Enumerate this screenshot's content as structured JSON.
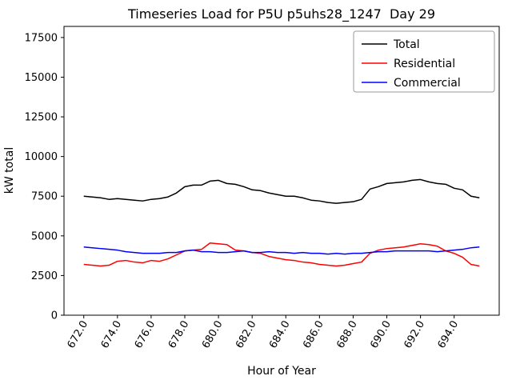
{
  "chart_data": {
    "type": "line",
    "title": "Timeseries Load for P5U p5uhs28_1247  Day 29",
    "xlabel": "Hour of Year",
    "ylabel": "kW total",
    "xlim": [
      670.825,
      696.675
    ],
    "ylim": [
      0,
      18200
    ],
    "grid": false,
    "legend_position": "upper right",
    "x_ticks": [
      672,
      674,
      676,
      678,
      680,
      682,
      684,
      686,
      688,
      690,
      692,
      694
    ],
    "x_tick_labels": [
      "672.0",
      "674.0",
      "676.0",
      "678.0",
      "680.0",
      "682.0",
      "684.0",
      "686.0",
      "688.0",
      "690.0",
      "692.0",
      "694.0"
    ],
    "y_ticks": [
      0,
      2500,
      5000,
      7500,
      10000,
      12500,
      15000,
      17500
    ],
    "x": [
      672.0,
      672.5,
      673.0,
      673.5,
      674.0,
      674.5,
      675.0,
      675.5,
      676.0,
      676.5,
      677.0,
      677.5,
      678.0,
      678.5,
      679.0,
      679.5,
      680.0,
      680.5,
      681.0,
      681.5,
      682.0,
      682.5,
      683.0,
      683.5,
      684.0,
      684.5,
      685.0,
      685.5,
      686.0,
      686.5,
      687.0,
      687.5,
      688.0,
      688.5,
      689.0,
      689.5,
      690.0,
      690.5,
      691.0,
      691.5,
      692.0,
      692.5,
      693.0,
      693.5,
      694.0,
      694.5,
      695.0,
      695.5
    ],
    "series": [
      {
        "name": "Total",
        "color": "#000000",
        "values": [
          7500,
          7450,
          7400,
          7300,
          7350,
          7300,
          7250,
          7200,
          7300,
          7350,
          7450,
          7700,
          8100,
          8200,
          8200,
          8450,
          8500,
          8300,
          8250,
          8100,
          7900,
          7850,
          7700,
          7600,
          7500,
          7500,
          7400,
          7250,
          7200,
          7100,
          7050,
          7100,
          7150,
          7300,
          7950,
          8100,
          8300,
          8350,
          8400,
          8500,
          8550,
          8400,
          8300,
          8250,
          8000,
          7900,
          7500,
          7400
        ]
      },
      {
        "name": "Residential",
        "color": "#ff0000",
        "values": [
          3200,
          3150,
          3100,
          3150,
          3400,
          3450,
          3350,
          3300,
          3450,
          3400,
          3550,
          3800,
          4050,
          4100,
          4150,
          4550,
          4500,
          4450,
          4100,
          4050,
          3950,
          3900,
          3700,
          3600,
          3500,
          3450,
          3350,
          3300,
          3200,
          3150,
          3100,
          3150,
          3250,
          3350,
          3900,
          4100,
          4200,
          4250,
          4300,
          4400,
          4500,
          4450,
          4350,
          4050,
          3900,
          3650,
          3200,
          3100
        ]
      },
      {
        "name": "Commercial",
        "color": "#0000ff",
        "values": [
          4300,
          4250,
          4200,
          4150,
          4100,
          4000,
          3950,
          3900,
          3900,
          3900,
          3950,
          3950,
          4050,
          4100,
          4000,
          4000,
          3950,
          3950,
          4000,
          4050,
          3950,
          3950,
          4000,
          3950,
          3950,
          3900,
          3950,
          3900,
          3900,
          3850,
          3900,
          3850,
          3900,
          3900,
          3950,
          4000,
          4000,
          4050,
          4050,
          4050,
          4050,
          4050,
          4000,
          4050,
          4100,
          4150,
          4250,
          4300
        ]
      }
    ]
  }
}
